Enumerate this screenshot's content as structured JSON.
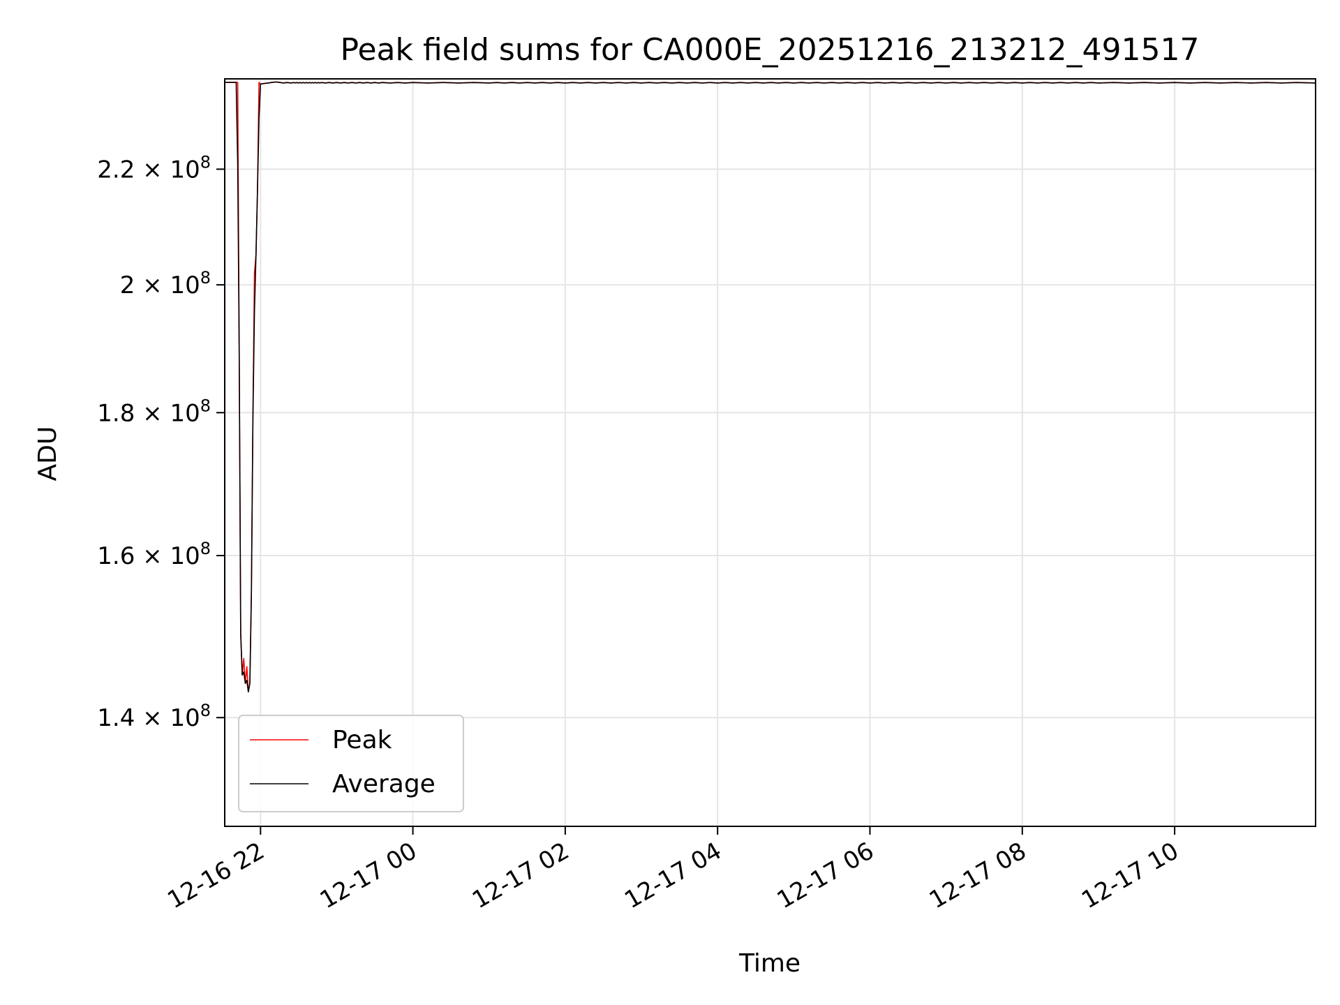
{
  "chart_data": {
    "type": "line",
    "title": "Peak field sums for CA000E_20251216_213212_491517",
    "xlabel": "Time",
    "ylabel": "ADU",
    "y_scale": "log",
    "ylim": [
      128000000,
      237000000
    ],
    "x_unit": "hours since 2025-12-16 00:00",
    "xlim": [
      21.53,
      35.85
    ],
    "x_ticks": [
      {
        "value": 22,
        "label": "12-16 22"
      },
      {
        "value": 24,
        "label": "12-17 00"
      },
      {
        "value": 26,
        "label": "12-17 02"
      },
      {
        "value": 28,
        "label": "12-17 04"
      },
      {
        "value": 30,
        "label": "12-17 06"
      },
      {
        "value": 32,
        "label": "12-17 08"
      },
      {
        "value": 34,
        "label": "12-17 10"
      }
    ],
    "y_ticks": [
      {
        "value": 140000000,
        "mantissa": "1.4",
        "exp": "8"
      },
      {
        "value": 160000000,
        "mantissa": "1.6",
        "exp": "8"
      },
      {
        "value": 180000000,
        "mantissa": "1.8",
        "exp": "8"
      },
      {
        "value": 200000000,
        "mantissa": "2",
        "exp": "8"
      },
      {
        "value": 220000000,
        "mantissa": "2.2",
        "exp": "8"
      }
    ],
    "grid": true,
    "legend": {
      "position": "lower-left",
      "entries": [
        "Peak",
        "Average"
      ]
    },
    "series": [
      {
        "name": "Peak",
        "color": "#ff0000"
      },
      {
        "name": "Average",
        "color": "#000000"
      }
    ],
    "x": [
      21.54,
      21.68,
      21.7,
      21.72,
      21.74,
      21.76,
      21.78,
      21.8,
      21.82,
      21.84,
      21.86,
      21.88,
      21.9,
      21.92,
      21.94,
      21.96,
      21.98,
      22.0,
      22.05,
      22.1,
      22.15,
      22.2,
      22.25,
      22.3,
      22.35,
      22.4,
      22.44,
      22.46,
      22.48,
      22.5,
      22.52,
      22.54,
      22.56,
      22.58,
      22.6,
      22.62,
      22.64,
      22.66,
      22.68,
      22.7,
      22.72,
      22.74,
      22.76,
      22.78,
      22.8,
      22.85,
      22.9,
      22.95,
      23.0,
      23.05,
      23.1,
      23.15,
      23.2,
      23.25,
      23.3,
      23.35,
      23.4,
      23.45,
      23.5,
      23.55,
      23.6,
      23.7,
      23.8,
      23.9,
      24.0,
      24.2,
      24.4,
      24.6,
      24.8,
      25.0,
      25.1,
      25.2,
      25.3,
      25.4,
      25.5,
      25.6,
      25.7,
      25.8,
      25.9,
      26.0,
      26.1,
      26.2,
      26.3,
      26.4,
      26.5,
      26.6,
      26.7,
      26.8,
      26.9,
      27.0,
      27.1,
      27.2,
      27.3,
      27.4,
      27.5,
      27.6,
      27.7,
      27.8,
      27.9,
      28.0,
      28.1,
      28.2,
      28.3,
      28.4,
      28.5,
      28.6,
      28.7,
      28.8,
      28.9,
      29.0,
      29.1,
      29.2,
      29.3,
      29.4,
      29.5,
      29.6,
      29.7,
      29.8,
      29.9,
      30.0,
      30.1,
      30.2,
      30.3,
      30.4,
      30.5,
      30.6,
      30.7,
      30.8,
      30.9,
      31.0,
      31.1,
      31.2,
      31.3,
      31.4,
      31.5,
      31.6,
      31.7,
      31.8,
      31.9,
      32.0,
      32.1,
      32.2,
      32.3,
      32.4,
      32.5,
      32.6,
      32.7,
      32.8,
      32.9,
      33.0,
      33.2,
      33.4,
      33.6,
      33.8,
      34.0,
      34.2,
      34.4,
      34.6,
      34.8,
      35.0,
      35.2,
      35.4,
      35.6,
      35.85
    ],
    "peak_values": [
      236300000,
      236300000,
      236300000,
      190000000,
      150000000,
      145000000,
      147000000,
      144000000,
      146000000,
      143000000,
      144000000,
      155000000,
      180000000,
      202000000,
      205000000,
      216000000,
      236300000,
      236000000,
      236100000,
      236200000,
      236300000,
      236400000,
      236300000,
      236200000,
      236300000,
      236200000,
      236300000,
      236200000,
      236300000,
      236200000,
      236300000,
      236200000,
      236300000,
      236200000,
      236300000,
      236200000,
      236300000,
      236200000,
      236300000,
      236200000,
      236300000,
      236200000,
      236300000,
      236200000,
      236300000,
      236200000,
      236300000,
      236200000,
      236300000,
      236200000,
      236300000,
      236200000,
      236300000,
      236200000,
      236300000,
      236200000,
      236300000,
      236200000,
      236300000,
      236200000,
      236300000,
      236200000,
      236300000,
      236200000,
      236300000,
      236200000,
      236300000,
      236200000,
      236300000,
      236200000,
      236300000,
      236200000,
      236300000,
      236200000,
      236300000,
      236200000,
      236300000,
      236200000,
      236300000,
      236200000,
      236300000,
      236200000,
      236300000,
      236200000,
      236300000,
      236200000,
      236300000,
      236200000,
      236300000,
      236200000,
      236300000,
      236200000,
      236300000,
      236200000,
      236300000,
      236200000,
      236300000,
      236200000,
      236300000,
      236200000,
      236300000,
      236200000,
      236300000,
      236200000,
      236300000,
      236200000,
      236300000,
      236200000,
      236300000,
      236200000,
      236300000,
      236200000,
      236300000,
      236200000,
      236300000,
      236200000,
      236300000,
      236200000,
      236300000,
      236200000,
      236300000,
      236200000,
      236300000,
      236200000,
      236300000,
      236200000,
      236300000,
      236200000,
      236300000,
      236200000,
      236300000,
      236200000,
      236300000,
      236200000,
      236300000,
      236200000,
      236300000,
      236200000,
      236300000,
      236200000,
      236300000,
      236200000,
      236300000,
      236200000,
      236300000,
      236200000,
      236300000,
      236200000,
      236300000,
      236200000,
      236300000,
      236200000,
      236300000,
      236200000,
      236300000,
      236200000,
      236300000,
      236200000,
      236300000,
      236200000,
      236300000,
      236200000,
      236300000,
      236200000
    ]
  },
  "legend_labels": {
    "peak": "Peak",
    "average": "Average"
  }
}
